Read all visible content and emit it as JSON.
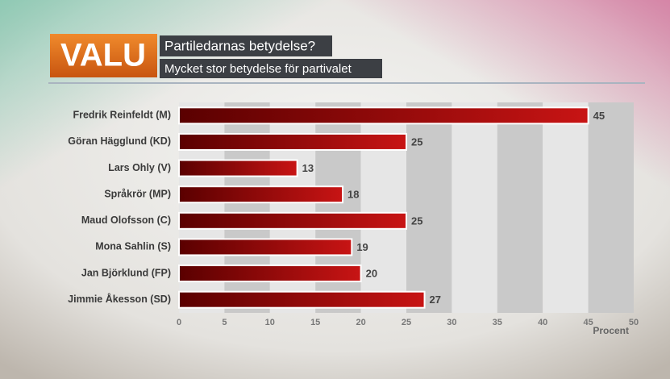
{
  "chart_data": {
    "type": "bar",
    "orientation": "horizontal",
    "logo": "VALU",
    "title": "Partiledarnas betydelse?",
    "subtitle": "Mycket stor betydelse för partivalet",
    "categories": [
      "Fredrik Reinfeldt (M)",
      "Göran Hägglund (KD)",
      "Lars Ohly (V)",
      "Språkrör (MP)",
      "Maud Olofsson (C)",
      "Mona Sahlin (S)",
      "Jan Björklund (FP)",
      "Jimmie Åkesson (SD)"
    ],
    "values": [
      45,
      25,
      13,
      18,
      25,
      19,
      20,
      27
    ],
    "color": "#b30a0a",
    "xlabel": "Procent",
    "xlim": [
      0,
      50
    ],
    "xticks": [
      0,
      5,
      10,
      15,
      20,
      25,
      30,
      35,
      40,
      45,
      50
    ]
  }
}
